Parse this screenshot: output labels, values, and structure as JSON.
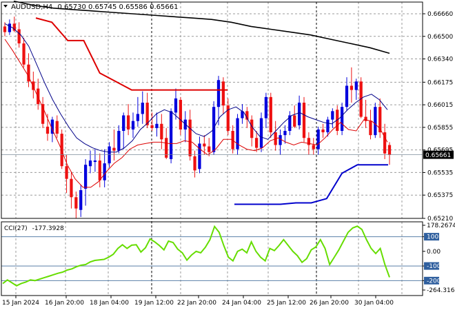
{
  "header": {
    "symbol": "AUDUSD,H4",
    "ohlc": "0.65730 0.65745 0.65586 0.65661"
  },
  "cci_header": {
    "label": "CCI(27)",
    "value": "-177.3928"
  },
  "price_axis": {
    "ticks": [
      "0.66660",
      "0.66500",
      "0.66340",
      "0.66175",
      "0.66015",
      "0.65855",
      "0.65695",
      "0.65535",
      "0.65375",
      "0.65210"
    ],
    "current_price": "0.65661"
  },
  "cci_axis": {
    "ticks": [
      "178.2674",
      "100",
      "0.00",
      "-100",
      "-200",
      "-264.3161"
    ]
  },
  "time_axis": {
    "labels": [
      "15 Jan 2024",
      "16 Jan 20:00",
      "18 Jan 04:00",
      "19 Jan 12:00",
      "22 Jan 20:00",
      "24 Jan 04:00",
      "25 Jan 12:00",
      "26 Jan 20:00",
      "30 Jan 04:00"
    ]
  },
  "colors": {
    "bull": "#0000dd",
    "bear": "#ee1111",
    "slow_ma": "#000000",
    "fast_ma": "#000088",
    "ema": "#dd0000",
    "stop_upper": "#dd0000",
    "stop_lower": "#0000cc",
    "cci": "#66dd00",
    "grid": "#9a9a9a"
  },
  "chart_data": [
    {
      "type": "candlestick",
      "title": "AUDUSD,H4",
      "ylim": [
        0.6521,
        0.6674
      ],
      "candles": [
        [
          0.6657,
          0.666,
          0.665,
          0.6653
        ],
        [
          0.6653,
          0.6662,
          0.6651,
          0.6659
        ],
        [
          0.6659,
          0.6664,
          0.6653,
          0.6654
        ],
        [
          0.6655,
          0.666,
          0.6642,
          0.6645
        ],
        [
          0.6645,
          0.6649,
          0.6628,
          0.663
        ],
        [
          0.663,
          0.6638,
          0.6614,
          0.6618
        ],
        [
          0.6618,
          0.6625,
          0.6606,
          0.6612
        ],
        [
          0.6613,
          0.662,
          0.6598,
          0.6602
        ],
        [
          0.6602,
          0.6607,
          0.6585,
          0.6588
        ],
        [
          0.6586,
          0.6595,
          0.6576,
          0.6581
        ],
        [
          0.6581,
          0.6593,
          0.6575,
          0.6591
        ],
        [
          0.659,
          0.6594,
          0.6578,
          0.6581
        ],
        [
          0.6581,
          0.6584,
          0.6556,
          0.6558
        ],
        [
          0.6558,
          0.6566,
          0.6539,
          0.6549
        ],
        [
          0.6549,
          0.6554,
          0.6528,
          0.6536
        ],
        [
          0.6536,
          0.654,
          0.6521,
          0.6528
        ],
        [
          0.6527,
          0.6545,
          0.6522,
          0.6541
        ],
        [
          0.6542,
          0.6563,
          0.653,
          0.6559
        ],
        [
          0.6558,
          0.6569,
          0.6553,
          0.6562
        ],
        [
          0.6561,
          0.657,
          0.6554,
          0.6562
        ],
        [
          0.6562,
          0.6567,
          0.6543,
          0.6548
        ],
        [
          0.6548,
          0.657,
          0.6543,
          0.656
        ],
        [
          0.656,
          0.6575,
          0.6557,
          0.6572
        ],
        [
          0.6571,
          0.6584,
          0.6562,
          0.6569
        ],
        [
          0.6569,
          0.6587,
          0.6567,
          0.6583
        ],
        [
          0.6583,
          0.6596,
          0.657,
          0.6594
        ],
        [
          0.6594,
          0.6602,
          0.658,
          0.6584
        ],
        [
          0.6584,
          0.6596,
          0.6578,
          0.659
        ],
        [
          0.659,
          0.6607,
          0.6586,
          0.6595
        ],
        [
          0.6595,
          0.6611,
          0.6588,
          0.6603
        ],
        [
          0.6603,
          0.661,
          0.6585,
          0.6587
        ],
        [
          0.6587,
          0.6596,
          0.6583,
          0.6585
        ],
        [
          0.6585,
          0.6596,
          0.6579,
          0.6588
        ],
        [
          0.6588,
          0.6595,
          0.657,
          0.6577
        ],
        [
          0.6578,
          0.6585,
          0.6563,
          0.6564
        ],
        [
          0.6563,
          0.6599,
          0.656,
          0.6597
        ],
        [
          0.6596,
          0.6613,
          0.6591,
          0.6606
        ],
        [
          0.6605,
          0.6607,
          0.658,
          0.6584
        ],
        [
          0.6584,
          0.6597,
          0.6575,
          0.6591
        ],
        [
          0.6591,
          0.6598,
          0.6562,
          0.6565
        ],
        [
          0.6565,
          0.6569,
          0.655,
          0.6555
        ],
        [
          0.6556,
          0.6579,
          0.6553,
          0.6574
        ],
        [
          0.6574,
          0.658,
          0.6566,
          0.6572
        ],
        [
          0.6572,
          0.6578,
          0.6565,
          0.6568
        ],
        [
          0.6568,
          0.6604,
          0.6566,
          0.66
        ],
        [
          0.66,
          0.6622,
          0.6587,
          0.6619
        ],
        [
          0.6618,
          0.6621,
          0.6595,
          0.6601
        ],
        [
          0.6601,
          0.6606,
          0.658,
          0.6583
        ],
        [
          0.6583,
          0.6587,
          0.6567,
          0.657
        ],
        [
          0.657,
          0.6595,
          0.6566,
          0.6592
        ],
        [
          0.6592,
          0.6602,
          0.6588,
          0.6597
        ],
        [
          0.6597,
          0.66,
          0.6585,
          0.6591
        ],
        [
          0.6591,
          0.6594,
          0.6572,
          0.6578
        ],
        [
          0.6578,
          0.6583,
          0.6568,
          0.6571
        ],
        [
          0.6571,
          0.6596,
          0.6568,
          0.6592
        ],
        [
          0.6592,
          0.661,
          0.6585,
          0.6607
        ],
        [
          0.6607,
          0.661,
          0.6578,
          0.6582
        ],
        [
          0.6582,
          0.659,
          0.6569,
          0.6573
        ],
        [
          0.6573,
          0.6584,
          0.6566,
          0.658
        ],
        [
          0.658,
          0.6587,
          0.6574,
          0.6583
        ],
        [
          0.6583,
          0.6597,
          0.658,
          0.6594
        ],
        [
          0.6594,
          0.6601,
          0.6585,
          0.6586
        ],
        [
          0.6587,
          0.6608,
          0.6584,
          0.6603
        ],
        [
          0.6603,
          0.6607,
          0.6575,
          0.6578
        ],
        [
          0.6578,
          0.6582,
          0.6566,
          0.6573
        ],
        [
          0.6573,
          0.6578,
          0.6566,
          0.657
        ],
        [
          0.657,
          0.6586,
          0.6566,
          0.6584
        ],
        [
          0.6584,
          0.6588,
          0.6578,
          0.6582
        ],
        [
          0.6582,
          0.6593,
          0.6579,
          0.6591
        ],
        [
          0.6591,
          0.6599,
          0.6585,
          0.6597
        ],
        [
          0.6598,
          0.6601,
          0.658,
          0.6583
        ],
        [
          0.6583,
          0.6603,
          0.658,
          0.66
        ],
        [
          0.66,
          0.6621,
          0.6597,
          0.6615
        ],
        [
          0.6615,
          0.6628,
          0.6603,
          0.6612
        ],
        [
          0.6612,
          0.662,
          0.6605,
          0.6618
        ],
        [
          0.6618,
          0.6621,
          0.6592,
          0.6593
        ],
        [
          0.6593,
          0.6605,
          0.6585,
          0.659
        ],
        [
          0.659,
          0.6598,
          0.6577,
          0.658
        ],
        [
          0.658,
          0.6603,
          0.6578,
          0.66
        ],
        [
          0.66,
          0.6606,
          0.6578,
          0.6582
        ],
        [
          0.6582,
          0.6588,
          0.6563,
          0.6567
        ],
        [
          0.6573,
          0.6575,
          0.6559,
          0.6566
        ]
      ],
      "overlays": [
        {
          "name": "slow_ma",
          "color": "#000000",
          "values": [
            0.6675,
            0.6672,
            0.667,
            0.6669,
            0.6668,
            0.6667,
            0.6666,
            0.6665,
            0.6664,
            0.6663,
            0.6662,
            0.666,
            0.6657,
            0.6655,
            0.6653,
            0.6651,
            0.6648,
            0.6645,
            0.6642,
            0.6638
          ]
        },
        {
          "name": "fast_ma",
          "color": "#000088",
          "values": [
            0.6659,
            0.6656,
            0.6651,
            0.6643,
            0.663,
            0.6617,
            0.6605,
            0.6595,
            0.6586,
            0.6578,
            0.6574,
            0.6571,
            0.6569,
            0.6568,
            0.6568,
            0.6571,
            0.6576,
            0.6584,
            0.6589,
            0.6595,
            0.6598,
            0.6596,
            0.6591,
            0.6586,
            0.6581,
            0.6579,
            0.6583,
            0.6593,
            0.6598,
            0.66,
            0.6596,
            0.6586,
            0.6579,
            0.6577,
            0.6583,
            0.6589,
            0.6594,
            0.6596,
            0.6593,
            0.6591,
            0.6589,
            0.6588,
            0.6592,
            0.6598,
            0.6603,
            0.6607,
            0.6609,
            0.6605,
            0.6598
          ]
        },
        {
          "name": "ema",
          "color": "#dd0000",
          "values": [
            0.6648,
            0.664,
            0.6631,
            0.6622,
            0.661,
            0.6598,
            0.6585,
            0.6573,
            0.6559,
            0.6549,
            0.6543,
            0.6543,
            0.6547,
            0.6554,
            0.656,
            0.6564,
            0.657,
            0.6573,
            0.6574,
            0.6575,
            0.6575,
            0.6574,
            0.6574,
            0.6576,
            0.6575,
            0.657,
            0.6566,
            0.657,
            0.6577,
            0.6577,
            0.6573,
            0.657,
            0.6569,
            0.6571,
            0.6576,
            0.6578,
            0.6575,
            0.6573,
            0.6575,
            0.6574,
            0.6573,
            0.6578,
            0.6584,
            0.6589,
            0.6584,
            0.6583,
            0.6591,
            0.659,
            0.6585,
            0.6575
          ]
        },
        {
          "name": "stop_upper",
          "color": "#dd0000",
          "values": [
            0.6663,
            0.666,
            0.6647,
            0.6647,
            0.6624,
            0.6618,
            0.6612,
            0.6612,
            0.6612,
            0.6612,
            0.6612,
            0.6612,
            0.6612
          ]
        },
        {
          "name": "stop_lower",
          "color": "#0000cc",
          "values": [
            0.6531,
            0.6531,
            0.6531,
            0.6531,
            0.6532,
            0.6532,
            0.6535,
            0.6553,
            0.6559,
            0.6559,
            0.6559
          ]
        }
      ],
      "current_price": 0.65661
    },
    {
      "type": "line",
      "title": "CCI(27) -177.3928",
      "ylim": [
        -264.3161,
        178.2674
      ],
      "levels": [
        100,
        -100,
        -200
      ],
      "series": [
        {
          "name": "CCI(27)",
          "values": [
            -220,
            -195,
            -215,
            -235,
            -220,
            -210,
            -195,
            -200,
            -190,
            -180,
            -170,
            -160,
            -150,
            -142,
            -128,
            -120,
            -105,
            -95,
            -90,
            -72,
            -62,
            -58,
            -55,
            -40,
            -20,
            20,
            45,
            20,
            42,
            45,
            -5,
            25,
            85,
            65,
            40,
            10,
            70,
            60,
            15,
            -10,
            -60,
            -25,
            0,
            -10,
            28,
            80,
            170,
            130,
            40,
            -40,
            -65,
            0,
            15,
            -10,
            65,
            0,
            -40,
            -65,
            20,
            5,
            40,
            80,
            40,
            0,
            -30,
            -75,
            -50,
            10,
            30,
            80,
            20,
            -90,
            -40,
            10,
            70,
            130,
            160,
            172,
            150,
            80,
            20,
            -15,
            20,
            -90,
            -177
          ]
        }
      ]
    }
  ]
}
